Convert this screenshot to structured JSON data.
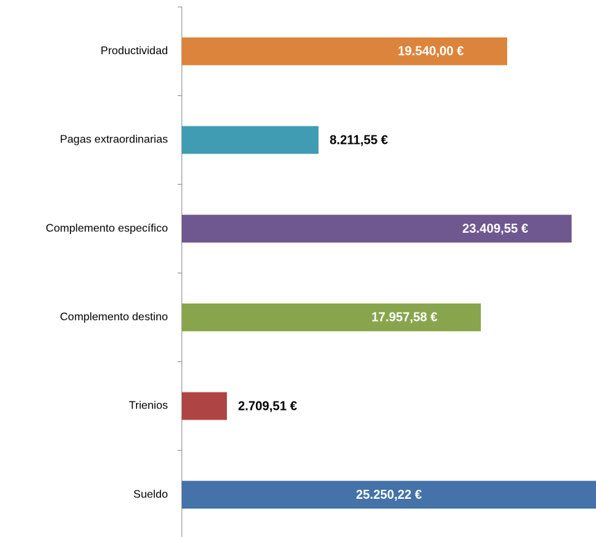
{
  "chart_data": {
    "type": "bar",
    "orientation": "horizontal",
    "categories": [
      "Productividad",
      "Pagas extraordinarias",
      "Complemento específico",
      "Complemento destino",
      "Trienios",
      "Sueldo"
    ],
    "values": [
      19540.0,
      8211.55,
      23409.55,
      17957.58,
      2709.51,
      25250.22
    ],
    "value_labels": [
      "19.540,00 €",
      "8.211,55 €",
      "23.409,55 €",
      "17.957,58 €",
      "2.709,51 €",
      "25.250,22 €"
    ],
    "colors": [
      "#dd843c",
      "#3f9cb2",
      "#6f5790",
      "#88a54d",
      "#ae4544",
      "#4472a9"
    ],
    "xlim": [
      0,
      25000
    ]
  }
}
